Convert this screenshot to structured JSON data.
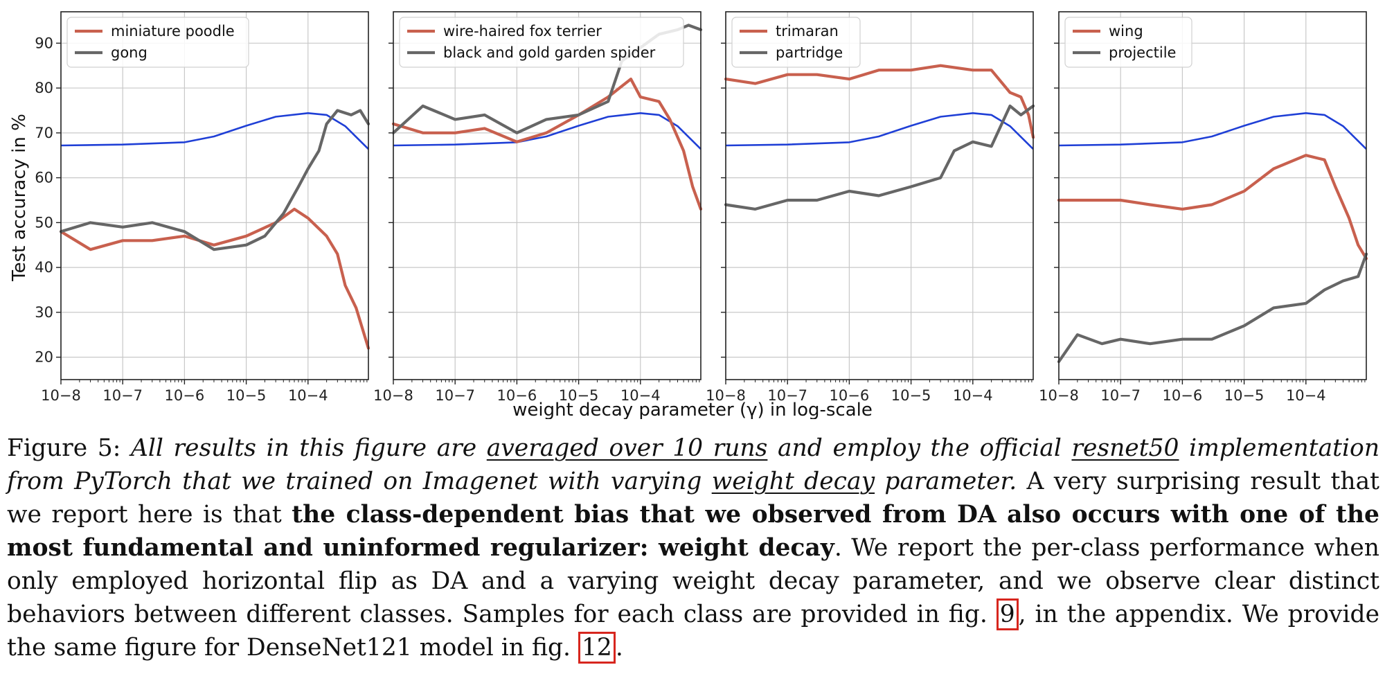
{
  "chart_data": {
    "type": "line",
    "shared_xlabel": "weight decay parameter (γ) in log-scale",
    "ylabel": "Test accuracy in %",
    "x_scale": "log",
    "x_range": [
      1e-08,
      0.00095
    ],
    "x_tick_labels": [
      "10−8",
      "10−7",
      "10−6",
      "10−5",
      "10−4"
    ],
    "x_tick_values": [
      1e-08,
      1e-07,
      1e-06,
      1e-05,
      0.0001
    ],
    "y_range": [
      15,
      97
    ],
    "y_ticks": [
      20,
      30,
      40,
      50,
      60,
      70,
      80,
      90
    ],
    "grid": true,
    "legend_position": "top-left",
    "colors": {
      "class_a": "#c8604e",
      "class_b": "#666666",
      "average": "#1f3fd6"
    },
    "average_curve": {
      "x": [
        1e-08,
        1e-07,
        1e-06,
        3e-06,
        1e-05,
        3e-05,
        0.0001,
        0.0002,
        0.0004,
        0.00095
      ],
      "y": [
        67.2,
        67.4,
        67.9,
        69.2,
        71.6,
        73.6,
        74.4,
        74.0,
        71.5,
        66.4
      ]
    },
    "panels": [
      {
        "legend": [
          "miniature poodle",
          "gong"
        ],
        "series": [
          {
            "name": "miniature poodle",
            "x": [
              1e-08,
              3e-08,
              1e-07,
              3e-07,
              1e-06,
              3e-06,
              1e-05,
              3e-05,
              6e-05,
              0.0001,
              0.0002,
              0.0003,
              0.0004,
              0.0006,
              0.00095
            ],
            "y": [
              48,
              44,
              46,
              46,
              47,
              45,
              47,
              50,
              53,
              51,
              47,
              43,
              36,
              31,
              22
            ]
          },
          {
            "name": "gong",
            "x": [
              1e-08,
              3e-08,
              1e-07,
              3e-07,
              1e-06,
              3e-06,
              1e-05,
              2e-05,
              4e-05,
              7e-05,
              0.0001,
              0.00015,
              0.0002,
              0.0003,
              0.0005,
              0.0007,
              0.00095
            ],
            "y": [
              48,
              50,
              49,
              50,
              48,
              44,
              45,
              47,
              52,
              58,
              62,
              66,
              72,
              75,
              74,
              75,
              72
            ]
          }
        ]
      },
      {
        "legend": [
          "wire-haired fox terrier",
          "black and gold garden spider"
        ],
        "series": [
          {
            "name": "wire-haired fox terrier",
            "x": [
              1e-08,
              3e-08,
              1e-07,
              3e-07,
              1e-06,
              3e-06,
              1e-05,
              3e-05,
              7e-05,
              0.0001,
              0.0002,
              0.0003,
              0.0005,
              0.0007,
              0.00095
            ],
            "y": [
              72,
              70,
              70,
              71,
              68,
              70,
              74,
              78,
              82,
              78,
              77,
              73,
              66,
              58,
              53
            ]
          },
          {
            "name": "black and gold garden spider",
            "x": [
              1e-08,
              3e-08,
              1e-07,
              3e-07,
              1e-06,
              3e-06,
              1e-05,
              3e-05,
              5e-05,
              0.0001,
              0.0002,
              0.0004,
              0.0006,
              0.00095
            ],
            "y": [
              70,
              76,
              73,
              74,
              70,
              73,
              74,
              77,
              86,
              89,
              92,
              93,
              94,
              93
            ]
          }
        ]
      },
      {
        "legend": [
          "trimaran",
          "partridge"
        ],
        "series": [
          {
            "name": "trimaran",
            "x": [
              1e-08,
              3e-08,
              1e-07,
              3e-07,
              1e-06,
              3e-06,
              1e-05,
              3e-05,
              0.0001,
              0.0002,
              0.0004,
              0.0006,
              0.0008,
              0.00095
            ],
            "y": [
              82,
              81,
              83,
              83,
              82,
              84,
              84,
              85,
              84,
              84,
              79,
              78,
              74,
              69
            ]
          },
          {
            "name": "partridge",
            "x": [
              1e-08,
              3e-08,
              1e-07,
              3e-07,
              1e-06,
              3e-06,
              1e-05,
              3e-05,
              5e-05,
              0.0001,
              0.0002,
              0.0004,
              0.0006,
              0.00095
            ],
            "y": [
              54,
              53,
              55,
              55,
              57,
              56,
              58,
              60,
              66,
              68,
              67,
              76,
              74,
              76
            ]
          }
        ]
      },
      {
        "legend": [
          "wing",
          "projectile"
        ],
        "series": [
          {
            "name": "wing",
            "x": [
              1e-08,
              3e-08,
              1e-07,
              3e-07,
              1e-06,
              3e-06,
              1e-05,
              3e-05,
              0.0001,
              0.0002,
              0.0003,
              0.0005,
              0.0007,
              0.00095
            ],
            "y": [
              55,
              55,
              55,
              54,
              53,
              54,
              57,
              62,
              65,
              64,
              58,
              51,
              45,
              42
            ]
          },
          {
            "name": "projectile",
            "x": [
              1e-08,
              2e-08,
              5e-08,
              1e-07,
              3e-07,
              1e-06,
              3e-06,
              1e-05,
              3e-05,
              0.0001,
              0.0002,
              0.0004,
              0.0007,
              0.00095
            ],
            "y": [
              19,
              25,
              23,
              24,
              23,
              24,
              24,
              27,
              31,
              32,
              35,
              37,
              38,
              43
            ]
          }
        ]
      }
    ]
  },
  "caption": {
    "label": "Figure 5:",
    "italic_1": "All results in this figure are",
    "italic_ul_1": "averaged over 10 runs",
    "italic_2": "and employ the official",
    "italic_ul_2": "resnet50",
    "italic_3": "implementation from PyTorch that we trained on Imagenet with varying",
    "italic_ul_3": "weight decay",
    "italic_4": "parameter.",
    "text_1": "A very surprising result that we report here is that",
    "bold_1": "the class-dependent bias that we observed from DA also occurs with one of the most fundamental and uninformed regularizer: weight decay",
    "text_2": ". We report the per-class performance when only employed horizontal flip as DA and a varying weight decay parameter, and we observe clear distinct behaviors between different classes. Samples for each class are provided in fig.",
    "ref_1": "9",
    "text_3": ", in the appendix. We provide the same figure for DenseNet121 model in fig.",
    "ref_2": "12",
    "text_4": "."
  }
}
